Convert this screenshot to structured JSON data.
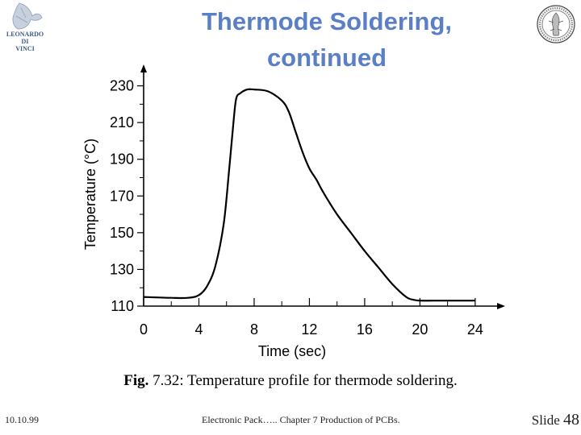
{
  "slide": {
    "title_line1": "Thermode Soldering,",
    "title_line2": "continued",
    "caption_prefix": "Fig.",
    "caption_text": " 7.32: Temperature profile for thermode soldering.",
    "footer_date": "10.10.99",
    "footer_center": "Electronic Pack….. Chapter 7 Production of PCBs.",
    "footer_slide_label": "Slide",
    "footer_slide_number": "48",
    "logo_left_text": [
      "LEONARDO",
      "DI",
      "VINCI"
    ],
    "logo_left_icon": "leonardo-logo-icon",
    "logo_right_icon": "university-seal-icon"
  },
  "colors": {
    "title": "#5b7fc7",
    "line": "#000000"
  },
  "chart_data": {
    "type": "line",
    "xlabel": "Time (sec)",
    "ylabel": "Temperature (°C)",
    "xlim": [
      0,
      25
    ],
    "ylim": [
      110,
      232
    ],
    "xticks": [
      0,
      4,
      8,
      12,
      16,
      20,
      24
    ],
    "yticks": [
      110,
      130,
      150,
      170,
      190,
      210,
      230
    ],
    "grid": false,
    "x": [
      0,
      2,
      3.2,
      4,
      4.6,
      5.2,
      5.8,
      6.2,
      6.5,
      6.7,
      7,
      7.5,
      8,
      9,
      10,
      10.5,
      11,
      11.5,
      12,
      12.5,
      13,
      14,
      15,
      16,
      17,
      18,
      19,
      19.5,
      20,
      21,
      22,
      24
    ],
    "y": [
      115,
      114.5,
      114.5,
      116,
      121,
      132,
      155,
      185,
      210,
      223,
      226,
      228,
      228,
      227,
      222,
      216,
      205,
      194,
      185,
      179,
      172,
      160,
      150,
      140,
      131,
      122,
      115,
      113.5,
      113,
      113,
      113,
      113
    ]
  }
}
